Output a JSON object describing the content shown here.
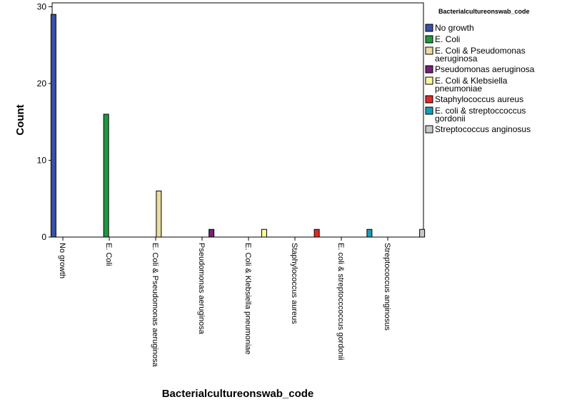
{
  "chart_data": {
    "type": "bar",
    "xlabel": "Bacterialcultureonswab_code",
    "ylabel": "Count",
    "ylim": [
      0,
      30.5
    ],
    "yticks": [
      0,
      10,
      20,
      30
    ],
    "grid": false,
    "legend": {
      "title": "Bacterialcultureonswab_code",
      "placement": "right"
    },
    "categories": [
      "No growth",
      "E. Coli",
      "E. Coli & Pseudomonas aeruginosa",
      "Pseudomonas aeruginosa",
      "E. Coli & Klebsiella pneumoniae",
      "Staphylococcus aureus",
      "E. coli & streptocccoccus gordonii",
      "Streptococcus anginosus"
    ],
    "series": [
      {
        "name": "No growth",
        "color": "#3850a8",
        "values": [
          29,
          0,
          0,
          0,
          0,
          0,
          0,
          0
        ]
      },
      {
        "name": "E. Coli",
        "color": "#1e9a40",
        "values": [
          0,
          16,
          0,
          0,
          0,
          0,
          0,
          0
        ]
      },
      {
        "name": "E. Coli & Pseudomonas aeruginosa",
        "legend_lines": [
          "E. Coli & Pseudomonas",
          "aeruginosa"
        ],
        "color": "#e8dca0",
        "values": [
          0,
          0,
          6,
          0,
          0,
          0,
          0,
          0
        ]
      },
      {
        "name": "Pseudomonas aeruginosa",
        "color": "#7a1e78",
        "values": [
          0,
          0,
          0,
          1,
          0,
          0,
          0,
          0
        ]
      },
      {
        "name": "E. Coli & Klebsiella pneumoniae",
        "legend_lines": [
          "E. Coli & Klebsiella",
          "pneumoniae"
        ],
        "color": "#fcf7a0",
        "values": [
          0,
          0,
          0,
          0,
          1,
          0,
          0,
          0
        ]
      },
      {
        "name": "Staphylococcus aureus",
        "color": "#e02a2a",
        "values": [
          0,
          0,
          0,
          0,
          0,
          1,
          0,
          0
        ]
      },
      {
        "name": "E. coli & streptoccoccus gordonii",
        "legend_lines": [
          "E. coli & streptoccoccus",
          "gordonii"
        ],
        "color": "#1c9bb5",
        "values": [
          0,
          0,
          0,
          0,
          0,
          0,
          1,
          0
        ]
      },
      {
        "name": "Streptococcus anginosus",
        "color": "#c8c8c8",
        "values": [
          0,
          0,
          0,
          0,
          0,
          0,
          0,
          1
        ]
      }
    ]
  }
}
